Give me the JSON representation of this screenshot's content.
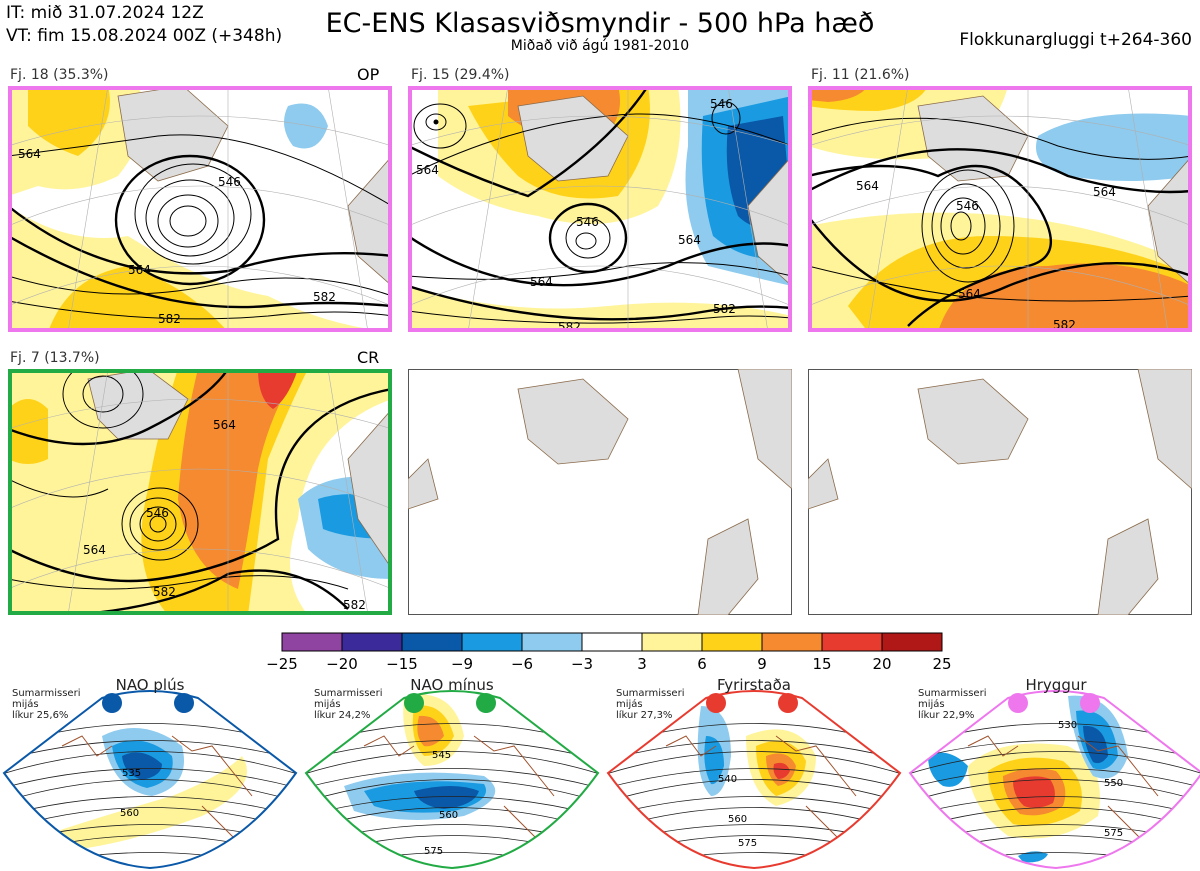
{
  "header": {
    "it": "IT: mið 31.07.2024 12Z",
    "vt": "VT: fim 15.08.2024 00Z  (+348h)",
    "title": "EC-ENS Klasasviðsmyndir - 500 hPa hæð",
    "subtitle": "Miðað við ágú 1981-2010",
    "window": "Flokkunargluggi t+264-360"
  },
  "panels": [
    {
      "label": "Fj. 18 (35.3%)",
      "tag": "OP",
      "border": "#ee77ee",
      "contours": [
        "546",
        "564",
        "564",
        "582",
        "582"
      ]
    },
    {
      "label": "Fj. 15 (29.4%)",
      "tag": "",
      "border": "#ee77ee",
      "contours": [
        "546",
        "546",
        "564",
        "564",
        "564",
        "582",
        "582"
      ]
    },
    {
      "label": "Fj. 11 (21.6%)",
      "tag": "",
      "border": "#ee77ee",
      "contours": [
        "546",
        "564",
        "564",
        "564",
        "582"
      ]
    },
    {
      "label": "Fj. 7 (13.7%)",
      "tag": "CR",
      "border": "#22aa44",
      "contours": [
        "546",
        "564",
        "564",
        "582",
        "582"
      ]
    }
  ],
  "colorbar": {
    "ticks": [
      "−25",
      "−20",
      "−15",
      "−9",
      "−6",
      "−3",
      "3",
      "6",
      "9",
      "15",
      "20",
      "25"
    ],
    "colors": [
      "#8e44a0",
      "#3b2b9a",
      "#0a58a8",
      "#1a9ae0",
      "#8ecbee",
      "#ffffff",
      "#fff49a",
      "#ffd21a",
      "#f58a30",
      "#e83b30",
      "#b01818"
    ]
  },
  "regimes": [
    {
      "name": "NAO plús",
      "info": [
        "Sumarmisseri",
        "mijás",
        "líkur 25,6%"
      ],
      "color": "#0a58a8",
      "contours": [
        "535",
        "560"
      ]
    },
    {
      "name": "NAO mínus",
      "info": [
        "Sumarmisseri",
        "mijás",
        "líkur 24,2%"
      ],
      "color": "#22aa44",
      "contours": [
        "545",
        "560",
        "575"
      ]
    },
    {
      "name": "Fyrirstaða",
      "info": [
        "Sumarmisseri",
        "mijás",
        "líkur 27,3%"
      ],
      "color": "#e83b30",
      "contours": [
        "540",
        "560",
        "575"
      ]
    },
    {
      "name": "Hryggur",
      "info": [
        "Sumarmisseri",
        "mijás",
        "líkur 22,9%"
      ],
      "color": "#ee77ee",
      "contours": [
        "530",
        "550",
        "575"
      ]
    }
  ]
}
